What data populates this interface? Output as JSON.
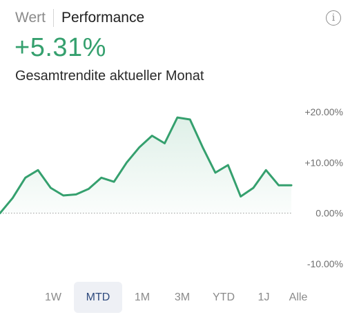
{
  "tabs": [
    {
      "label": "Wert"
    },
    {
      "label": "Performance"
    }
  ],
  "info_icon": {
    "glyph": "i",
    "icon": "info-icon"
  },
  "performance": {
    "value": "+5.31%",
    "label": "Gesamtrendite aktueller Monat",
    "color": "#35a06e"
  },
  "periods": [
    {
      "label": "1W"
    },
    {
      "label": "MTD",
      "selected": true
    },
    {
      "label": "1M"
    },
    {
      "label": "3M"
    },
    {
      "label": "YTD"
    },
    {
      "label": "1J"
    },
    {
      "label": "Alle"
    }
  ],
  "chart_data": {
    "type": "area",
    "ylim": [
      -10,
      20
    ],
    "y_ticks": [
      20,
      10,
      0,
      -10
    ],
    "y_tick_labels": [
      "+20.00%",
      "+10.00%",
      "0.00%",
      "-10.00%"
    ],
    "baseline": 0,
    "series": [
      {
        "values": [
          0.0,
          3.0,
          7.0,
          8.5,
          5.0,
          3.5,
          3.7,
          4.8,
          7.0,
          6.2,
          10.0,
          13.0,
          15.3,
          13.8,
          18.9,
          18.5,
          13.0,
          8.0,
          9.5,
          3.3,
          5.0,
          8.5,
          5.5,
          5.5
        ],
        "color": "#35a06e"
      }
    ],
    "grid": false
  }
}
